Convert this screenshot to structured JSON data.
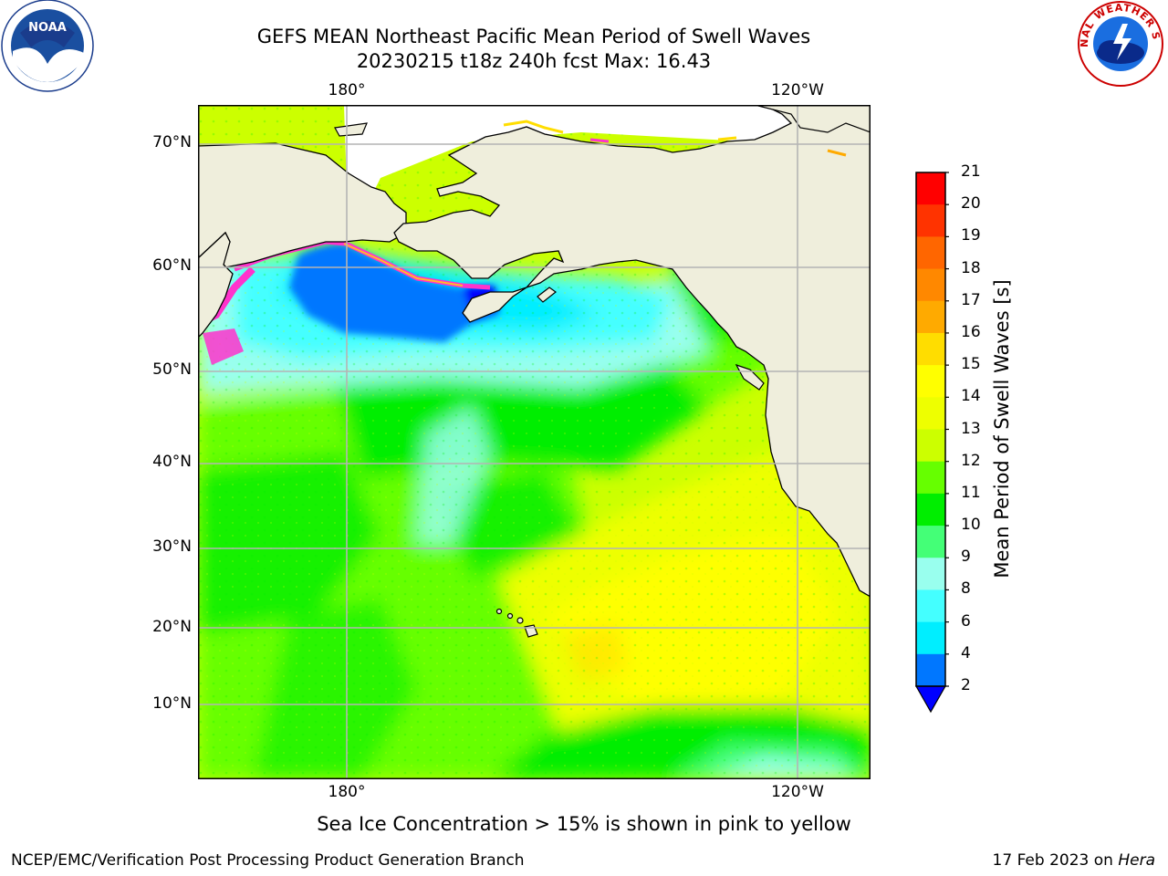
{
  "title_line1": "GEFS MEAN Northeast Pacific Mean Period of Swell Waves",
  "title_line2": "20230215 t18z 240h fcst   Max: 16.43",
  "lon_labels_top": [
    "180°",
    "120°W"
  ],
  "lon_labels_bottom": [
    "180°",
    "120°W"
  ],
  "lat_labels": [
    "70°N",
    "60°N",
    "50°N",
    "40°N",
    "30°N",
    "20°N",
    "10°N"
  ],
  "colorbar": {
    "title": "Mean Period of Swell Waves [s]",
    "ticks": [
      "21",
      "20",
      "19",
      "18",
      "17",
      "16",
      "15",
      "14",
      "13",
      "12",
      "11",
      "10",
      "9",
      "8",
      "6",
      "4",
      "2"
    ],
    "colors_top_to_bottom": [
      "#ff0000",
      "#ff3300",
      "#ff6600",
      "#ff8800",
      "#ffaa00",
      "#ffdd00",
      "#ffff00",
      "#eeff00",
      "#ccff00",
      "#66ff00",
      "#00ee00",
      "#44ff77",
      "#99ffee",
      "#44ffff",
      "#00eeff",
      "#0077ff"
    ],
    "under_color": "#0000ff"
  },
  "note": "Sea Ice Concentration > 15% is shown in pink to yellow",
  "credit": "NCEP/EMC/Verification Post Processing Product Generation Branch",
  "date_prefix": "17 Feb 2023 on ",
  "date_host": "Hera",
  "colors": {
    "land": "#efeedc",
    "grid": "#b4b4b4",
    "sea_ice": "#ff33cc"
  },
  "logos": {
    "left": "NOAA",
    "right": "NATIONAL WEATHER SERVICE"
  }
}
